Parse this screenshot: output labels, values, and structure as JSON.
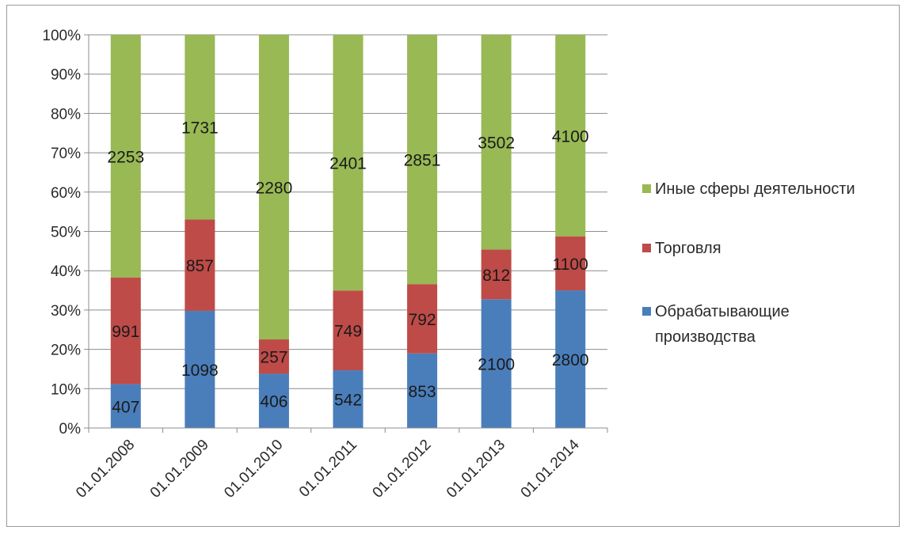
{
  "chart_data": {
    "type": "bar",
    "stacked": "percent",
    "categories": [
      "01.01.2008",
      "01.01.2009",
      "01.01.2010",
      "01.01.2011",
      "01.01.2012",
      "01.01.2013",
      "01.01.2014"
    ],
    "series": [
      {
        "name": "Обрабатывающие производства",
        "legend_lines": [
          "Обрабатывающие",
          "производства"
        ],
        "color": "#4a7ebb",
        "values": [
          407,
          1098,
          406,
          542,
          853,
          2100,
          2800
        ]
      },
      {
        "name": "Торговля",
        "legend_lines": [
          "Торговля"
        ],
        "color": "#be4b48",
        "values": [
          991,
          857,
          257,
          749,
          792,
          812,
          1100
        ]
      },
      {
        "name": "Иные сферы деятельности",
        "legend_lines": [
          "Иные сферы деятельности"
        ],
        "color": "#98b954",
        "values": [
          2253,
          1731,
          2280,
          2401,
          2851,
          3502,
          4100
        ]
      }
    ],
    "y_ticks": [
      "0%",
      "10%",
      "20%",
      "30%",
      "40%",
      "50%",
      "60%",
      "70%",
      "80%",
      "90%",
      "100%"
    ],
    "ylim": [
      0,
      100
    ],
    "grid": true,
    "legend_position": "right",
    "title": "",
    "xlabel": "",
    "ylabel": ""
  }
}
